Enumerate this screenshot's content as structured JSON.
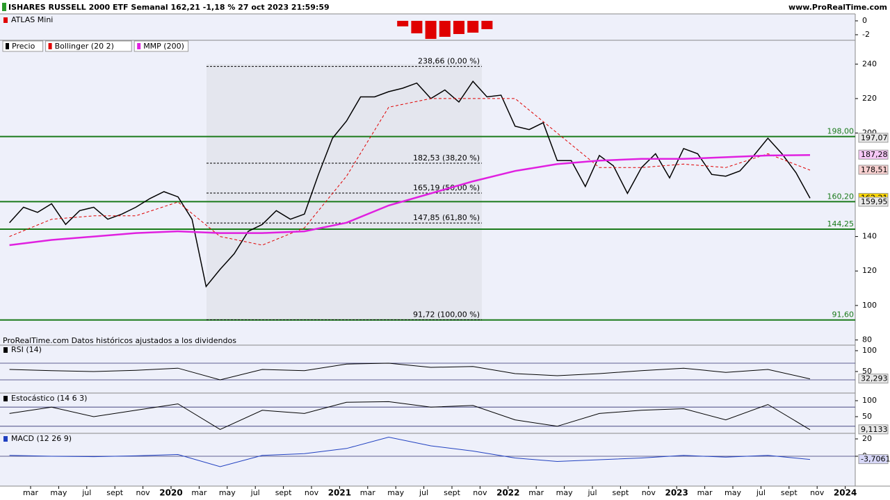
{
  "header": {
    "title": "ISHARES RUSSELL 2000 ETF Semanal 162,21 -1,18 % 27 oct 2023 21:59:59",
    "site": "www.ProRealTime.com"
  },
  "footer": "ProRealTime.com  Datos históricos ajustados a los dividendos",
  "chart_data": [
    {
      "type": "line",
      "x": [
        "2019-01",
        "2019-02",
        "2019-03",
        "2019-04",
        "2019-05",
        "2019-06",
        "2019-07",
        "2019-08",
        "2019-09",
        "2019-10",
        "2019-11",
        "2019-12",
        "2020-01",
        "2020-02",
        "2020-03",
        "2020-04",
        "2020-05",
        "2020-06",
        "2020-07",
        "2020-08",
        "2020-09",
        "2020-10",
        "2020-11",
        "2020-12",
        "2021-01",
        "2021-02",
        "2021-03",
        "2021-04",
        "2021-05",
        "2021-06",
        "2021-07",
        "2021-08",
        "2021-09",
        "2021-10",
        "2021-11",
        "2021-12",
        "2022-01",
        "2022-02",
        "2022-03",
        "2022-04",
        "2022-05",
        "2022-06",
        "2022-07",
        "2022-08",
        "2022-09",
        "2022-10",
        "2022-11",
        "2022-12",
        "2023-01",
        "2023-02",
        "2023-03",
        "2023-04",
        "2023-05",
        "2023-06",
        "2023-07",
        "2023-08",
        "2023-09",
        "2023-10"
      ],
      "series": [
        {
          "name": "Precio",
          "color": "#000000",
          "values": [
            148,
            157,
            154,
            159,
            147,
            155,
            157,
            150,
            153,
            157,
            162,
            166,
            163,
            150,
            111,
            121,
            130,
            143,
            147,
            155,
            150,
            153,
            176,
            197,
            207,
            221,
            221,
            224,
            226,
            229,
            220,
            225,
            218,
            230,
            221,
            222,
            204,
            202,
            206,
            184,
            184,
            169,
            187,
            181,
            165,
            180,
            188,
            174,
            191,
            188,
            176,
            175,
            178,
            187,
            197,
            188,
            177,
            162.21
          ]
        },
        {
          "name": "Bollinger (20 2)",
          "color": "#e00000",
          "x": [
            "2019-01",
            "2019-04",
            "2019-07",
            "2019-10",
            "2020-01",
            "2020-04",
            "2020-07",
            "2020-10",
            "2021-01",
            "2021-04",
            "2021-07",
            "2021-10",
            "2022-01",
            "2022-04",
            "2022-07",
            "2022-10",
            "2023-01",
            "2023-04",
            "2023-07",
            "2023-10"
          ],
          "values": [
            140,
            150,
            152,
            152,
            160,
            140,
            135,
            145,
            175,
            215,
            220,
            220,
            220,
            200,
            180,
            180,
            182,
            180,
            188,
            178.51
          ]
        },
        {
          "name": "MMP (200)",
          "color": "#e020e0",
          "x": [
            "2019-01",
            "2019-04",
            "2019-07",
            "2019-10",
            "2020-01",
            "2020-04",
            "2020-07",
            "2020-10",
            "2021-01",
            "2021-04",
            "2021-07",
            "2021-10",
            "2022-01",
            "2022-04",
            "2022-07",
            "2022-10",
            "2023-01",
            "2023-04",
            "2023-07",
            "2023-10"
          ],
          "values": [
            135,
            138,
            140,
            142,
            143,
            142,
            142,
            143,
            148,
            158,
            165,
            172,
            178,
            182,
            184,
            185,
            185,
            186,
            187,
            187.28
          ]
        }
      ],
      "ylim": [
        77,
        253
      ],
      "yticks": [
        240,
        220,
        200,
        140,
        120,
        100,
        80
      ],
      "levels": [
        {
          "value": 198,
          "label": "198,00"
        },
        {
          "value": 160.2,
          "label": "160,20"
        },
        {
          "value": 144.25,
          "label": "144,25"
        },
        {
          "value": 91.6,
          "label": "91,60"
        }
      ],
      "fibonacci": [
        {
          "value": 238.66,
          "label": "238,66 (0,00 %)"
        },
        {
          "value": 182.53,
          "label": "182,53 (38,20 %)"
        },
        {
          "value": 165.19,
          "label": "165,19 (50,00 %)"
        },
        {
          "value": 147.85,
          "label": "147,85 (61,80 %)"
        },
        {
          "value": 91.72,
          "label": "91,72 (100,00 %)"
        }
      ],
      "last_values": [
        {
          "value": 197.07,
          "label": "197,07",
          "color": "#e8e8e8"
        },
        {
          "value": 187.28,
          "label": "187,28",
          "color": "#f6c8f6"
        },
        {
          "value": 178.51,
          "label": "178,51",
          "color": "#f8d0d0"
        },
        {
          "value": 162.21,
          "label": "162,21",
          "color": "#ffd800"
        },
        {
          "value": 159.95,
          "label": "159,95",
          "color": "#e8e8e8"
        }
      ],
      "xticks": [
        {
          "value": "2019-03",
          "label": "mar"
        },
        {
          "value": "2019-05",
          "label": "may"
        },
        {
          "value": "2019-07",
          "label": "jul"
        },
        {
          "value": "2019-09",
          "label": "sept"
        },
        {
          "value": "2019-11",
          "label": "nov"
        },
        {
          "value": "2020-01",
          "label": "2020"
        },
        {
          "value": "2020-03",
          "label": "mar"
        },
        {
          "value": "2020-05",
          "label": "may"
        },
        {
          "value": "2020-07",
          "label": "jul"
        },
        {
          "value": "2020-09",
          "label": "sept"
        },
        {
          "value": "2020-11",
          "label": "nov"
        },
        {
          "value": "2021-01",
          "label": "2021"
        },
        {
          "value": "2021-03",
          "label": "mar"
        },
        {
          "value": "2021-05",
          "label": "may"
        },
        {
          "value": "2021-07",
          "label": "jul"
        },
        {
          "value": "2021-09",
          "label": "sept"
        },
        {
          "value": "2021-11",
          "label": "nov"
        },
        {
          "value": "2022-01",
          "label": "2022"
        },
        {
          "value": "2022-03",
          "label": "mar"
        },
        {
          "value": "2022-05",
          "label": "may"
        },
        {
          "value": "2022-07",
          "label": "jul"
        },
        {
          "value": "2022-09",
          "label": "sept"
        },
        {
          "value": "2022-11",
          "label": "nov"
        },
        {
          "value": "2023-01",
          "label": "2023"
        },
        {
          "value": "2023-03",
          "label": "mar"
        },
        {
          "value": "2023-05",
          "label": "may"
        },
        {
          "value": "2023-07",
          "label": "jul"
        },
        {
          "value": "2023-09",
          "label": "sept"
        },
        {
          "value": "2023-11",
          "label": "nov"
        },
        {
          "value": "2024-01",
          "label": "2024"
        }
      ]
    },
    {
      "type": "bar",
      "title": "ATLAS Mini",
      "color": "#e00000",
      "x": [
        "2021-05",
        "2021-06",
        "2021-07",
        "2021-08",
        "2021-09",
        "2021-10",
        "2021-11"
      ],
      "values": [
        -0.8,
        -1.8,
        -2.6,
        -2.3,
        -1.9,
        -1.7,
        -1.2
      ],
      "ylim": [
        -2.8,
        0.8
      ],
      "yticks": [
        0,
        -2
      ]
    },
    {
      "type": "line",
      "title": "RSI (14)",
      "color": "#000000",
      "x": [
        "2019-01",
        "2019-04",
        "2019-07",
        "2019-10",
        "2020-01",
        "2020-04",
        "2020-07",
        "2020-10",
        "2021-01",
        "2021-04",
        "2021-07",
        "2021-10",
        "2022-01",
        "2022-04",
        "2022-07",
        "2022-10",
        "2023-01",
        "2023-04",
        "2023-07",
        "2023-10"
      ],
      "values": [
        55,
        52,
        50,
        53,
        58,
        30,
        55,
        52,
        68,
        70,
        60,
        62,
        45,
        40,
        45,
        52,
        58,
        48,
        55,
        32.293
      ],
      "ylim": [
        0,
        113.3
      ],
      "yticks": [
        100,
        50
      ],
      "levels": [
        70,
        30
      ],
      "last_values": [
        {
          "value": 32.293,
          "label": "32,293",
          "color": "#e8e8e8"
        }
      ]
    },
    {
      "type": "line",
      "title": "Estocástico (14 6 3)",
      "color": "#000000",
      "x": [
        "2019-01",
        "2019-04",
        "2019-07",
        "2019-10",
        "2020-01",
        "2020-04",
        "2020-07",
        "2020-10",
        "2021-01",
        "2021-04",
        "2021-07",
        "2021-10",
        "2022-01",
        "2022-04",
        "2022-07",
        "2022-10",
        "2023-01",
        "2023-04",
        "2023-07",
        "2023-10"
      ],
      "values": [
        60,
        80,
        50,
        70,
        90,
        10,
        70,
        60,
        95,
        97,
        80,
        85,
        40,
        20,
        60,
        70,
        75,
        40,
        88,
        9.1133
      ],
      "ylim": [
        0,
        121.7
      ],
      "yticks": [
        100,
        50
      ],
      "levels": [
        80,
        20
      ],
      "last_values": [
        {
          "value": 9.1133,
          "label": "9,1133",
          "color": "#e8e8e8"
        }
      ]
    },
    {
      "type": "line",
      "title": "MACD (12 26 9)",
      "color": "#2040c0",
      "x": [
        "2019-01",
        "2019-04",
        "2019-07",
        "2019-10",
        "2020-01",
        "2020-04",
        "2020-07",
        "2020-10",
        "2021-01",
        "2021-04",
        "2021-07",
        "2021-10",
        "2022-01",
        "2022-04",
        "2022-07",
        "2022-10",
        "2023-01",
        "2023-04",
        "2023-07",
        "2023-10"
      ],
      "values": [
        1,
        0,
        -0.5,
        0.5,
        2,
        -12,
        1,
        3,
        9,
        22,
        12,
        6,
        -2,
        -6,
        -4,
        -2,
        1,
        -1,
        1,
        -3.7061
      ],
      "ylim": [
        -34.4,
        25.6
      ],
      "yticks": [
        20,
        0
      ],
      "levels": [
        0
      ],
      "last_values": [
        {
          "value": -3.7061,
          "label": "-3,7061",
          "color": "#d8d8f8"
        }
      ]
    }
  ]
}
